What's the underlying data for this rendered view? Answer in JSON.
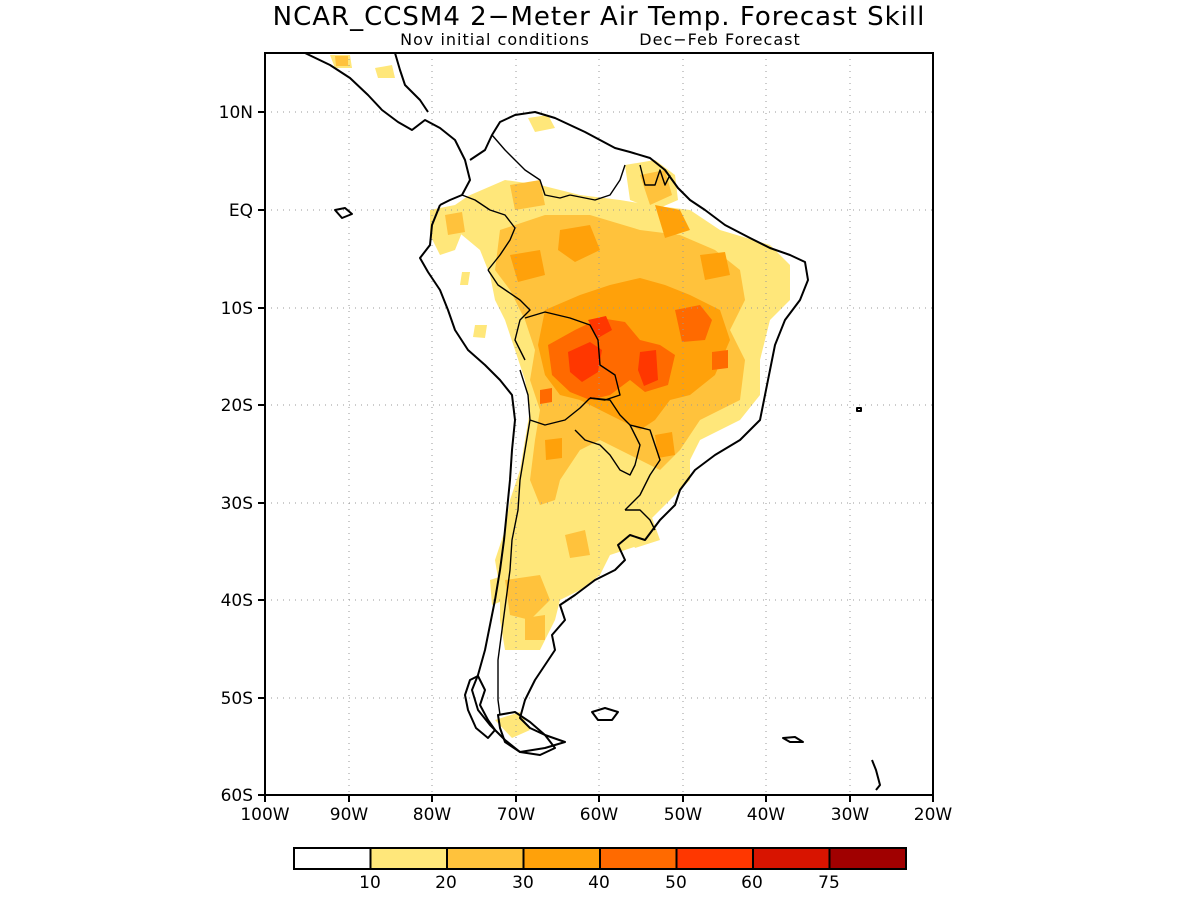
{
  "title": "NCAR_CCSM4 2−Meter Air Temp. Forecast Skill",
  "subtitle_left": "Nov initial conditions",
  "subtitle_right": "Dec−Feb Forecast",
  "lon_labels": [
    "100W",
    "90W",
    "80W",
    "70W",
    "60W",
    "50W",
    "40W",
    "30W",
    "20W"
  ],
  "lat_labels": [
    "10N",
    "EQ",
    "10S",
    "20S",
    "30S",
    "40S",
    "50S",
    "60S"
  ],
  "colorbar": {
    "colors": [
      "#ffffff",
      "#ffe77a",
      "#ffc23c",
      "#ffa10a",
      "#ff6a00",
      "#ff3700",
      "#d81400",
      "#a00000"
    ],
    "tick_labels": [
      "10",
      "20",
      "30",
      "40",
      "50",
      "60",
      "75"
    ]
  },
  "skill_colors": {
    "light": "#ffe77a",
    "medium": "#ffc23c",
    "high": "#ffa10a",
    "higher": "#ff6a00",
    "highest": "#ff3700"
  }
}
